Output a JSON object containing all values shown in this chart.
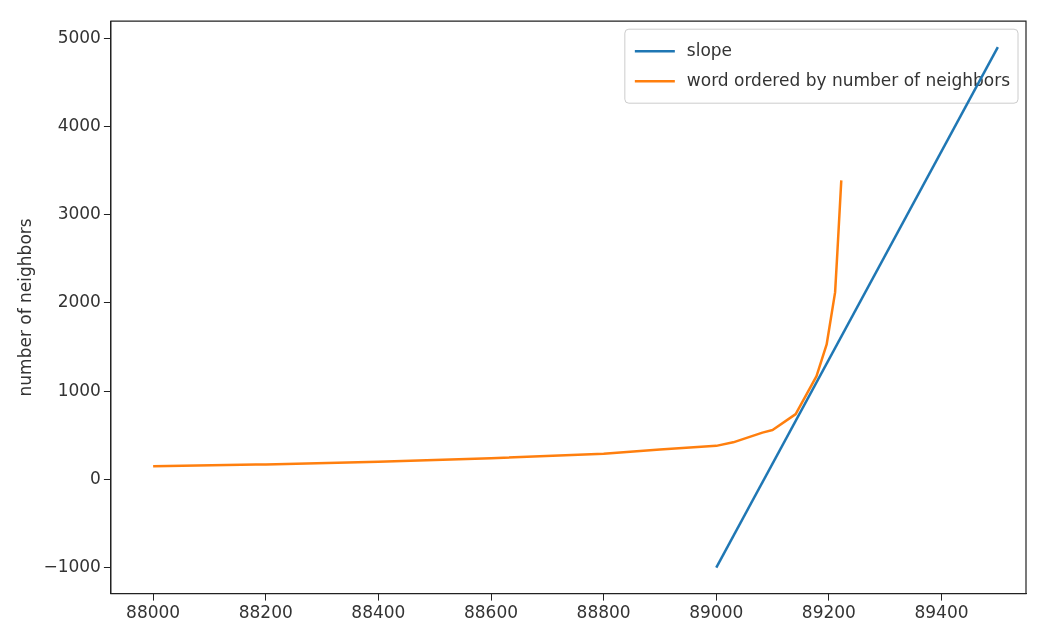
{
  "chart_data": {
    "type": "line",
    "ylabel": "number of neighbors",
    "xlim": [
      87925,
      89550
    ],
    "xticks": [
      88000,
      88200,
      88400,
      88600,
      88800,
      89000,
      89200,
      89400
    ],
    "ylim": [
      -1295,
      5195
    ],
    "yticks": [
      -1000,
      0,
      1000,
      2000,
      3000,
      4000,
      5000
    ],
    "grid": false,
    "legend": "top right",
    "marker": "none",
    "line_style": "solid",
    "series": [
      {
        "name": "slope",
        "color": "#1f77b4",
        "x": [
          89000,
          89500
        ],
        "values": [
          -1000,
          4900
        ]
      },
      {
        "name": "word ordered by number of neighbors",
        "color": "#ff7f0e",
        "x": [
          88000,
          88200,
          88400,
          88600,
          88800,
          88900,
          89000,
          89030,
          89082,
          89100,
          89141,
          89178,
          89196,
          89211,
          89215,
          89222
        ],
        "values": [
          150,
          170,
          200,
          240,
          290,
          340,
          380,
          420,
          530,
          560,
          740,
          1170,
          1530,
          2120,
          2570,
          3390
        ]
      }
    ]
  }
}
